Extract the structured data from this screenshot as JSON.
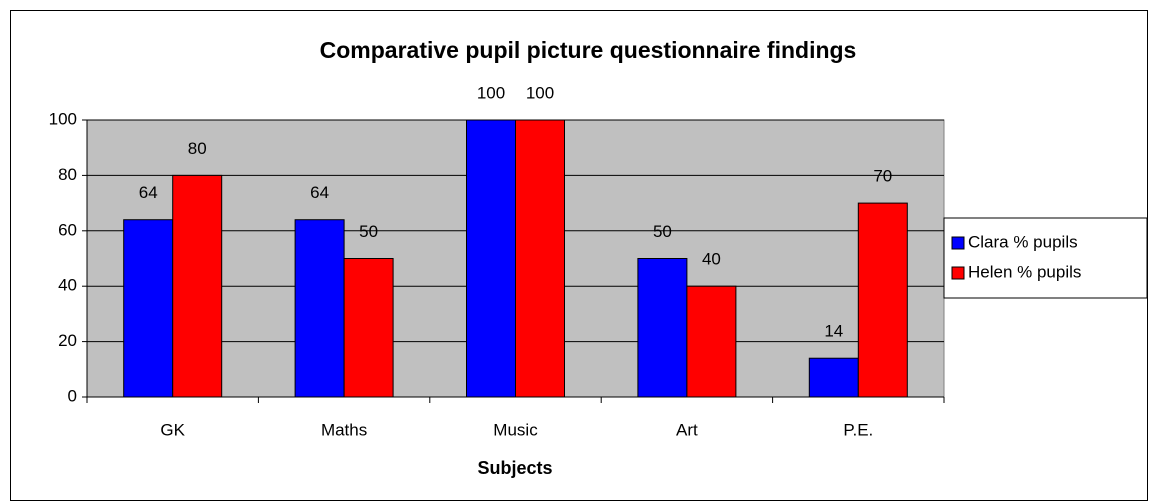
{
  "chart_data": {
    "type": "bar",
    "title": "Comparative pupil picture questionnaire findings",
    "x_label": "Subjects",
    "categories": [
      "GK",
      "Maths",
      "Music",
      "Art",
      "P.E."
    ],
    "series": [
      {
        "name": "Clara % pupils",
        "color": "#0000ff",
        "values": [
          64,
          64,
          100,
          50,
          14
        ]
      },
      {
        "name": "Helen % pupils",
        "color": "#ff0000",
        "values": [
          80,
          50,
          100,
          40,
          70
        ]
      }
    ],
    "ylim": [
      0,
      100
    ],
    "yticks": [
      0,
      20,
      40,
      60,
      80,
      100
    ],
    "grid": true,
    "legend": "right"
  }
}
